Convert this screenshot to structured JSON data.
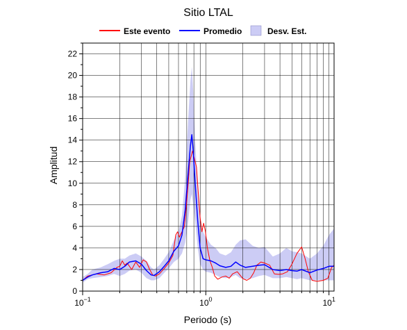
{
  "chart_data": {
    "type": "line",
    "title": "Sitio LTAL",
    "xlabel": "Periodo (s)",
    "ylabel": "Amplitud",
    "xscale": "log",
    "xlim": [
      0.1,
      11
    ],
    "ylim": [
      0,
      23
    ],
    "grid": true,
    "legend_position": "top",
    "x_tick_labels": [
      {
        "value": 0.1,
        "base": "10",
        "exp": "−1"
      },
      {
        "value": 1,
        "base": "10",
        "exp": "0"
      },
      {
        "value": 10,
        "base": "10",
        "exp": "1"
      }
    ],
    "y_ticks": [
      0,
      2,
      4,
      6,
      8,
      10,
      12,
      14,
      16,
      18,
      20,
      22
    ],
    "y_tick_labels": [
      "0",
      "2",
      "4",
      "6",
      "8",
      "10",
      "12",
      "14",
      "16",
      "18",
      "20",
      "22"
    ],
    "legend": {
      "event_label": "Este evento",
      "mean_label": "Promedio",
      "std_label": "Desv. Est."
    },
    "colors": {
      "event": "#ff0000",
      "mean": "#0000ff",
      "std_fill": "#ccccf5",
      "grid": "#000000"
    },
    "mean_series": [
      [
        0.1,
        1.0
      ],
      [
        0.11,
        1.3
      ],
      [
        0.12,
        1.5
      ],
      [
        0.14,
        1.7
      ],
      [
        0.16,
        1.8
      ],
      [
        0.18,
        2.1
      ],
      [
        0.2,
        2.0
      ],
      [
        0.22,
        2.3
      ],
      [
        0.24,
        2.7
      ],
      [
        0.27,
        2.8
      ],
      [
        0.3,
        2.5
      ],
      [
        0.33,
        1.9
      ],
      [
        0.36,
        1.5
      ],
      [
        0.38,
        1.45
      ],
      [
        0.42,
        1.8
      ],
      [
        0.46,
        2.3
      ],
      [
        0.5,
        2.8
      ],
      [
        0.55,
        3.7
      ],
      [
        0.6,
        4.2
      ],
      [
        0.64,
        5.2
      ],
      [
        0.68,
        7.5
      ],
      [
        0.72,
        11.0
      ],
      [
        0.75,
        13.5
      ],
      [
        0.77,
        14.5
      ],
      [
        0.79,
        13.0
      ],
      [
        0.82,
        10.0
      ],
      [
        0.86,
        6.5
      ],
      [
        0.9,
        4.0
      ],
      [
        0.95,
        3.0
      ],
      [
        1.0,
        2.9
      ],
      [
        1.1,
        2.8
      ],
      [
        1.2,
        2.6
      ],
      [
        1.3,
        2.35
      ],
      [
        1.45,
        2.2
      ],
      [
        1.6,
        2.3
      ],
      [
        1.75,
        2.7
      ],
      [
        1.9,
        2.4
      ],
      [
        2.1,
        2.2
      ],
      [
        2.4,
        2.3
      ],
      [
        2.7,
        2.4
      ],
      [
        3.0,
        2.45
      ],
      [
        3.5,
        2.0
      ],
      [
        4.0,
        1.9
      ],
      [
        4.5,
        2.0
      ],
      [
        5.0,
        1.9
      ],
      [
        5.5,
        1.85
      ],
      [
        6.0,
        2.0
      ],
      [
        7.0,
        1.7
      ],
      [
        8.0,
        1.95
      ],
      [
        9.0,
        2.1
      ],
      [
        10.0,
        2.3
      ],
      [
        11.0,
        2.3
      ]
    ],
    "event_series": [
      [
        0.1,
        1.0
      ],
      [
        0.11,
        1.4
      ],
      [
        0.13,
        1.6
      ],
      [
        0.15,
        1.5
      ],
      [
        0.17,
        1.7
      ],
      [
        0.19,
        2.2
      ],
      [
        0.2,
        2.3
      ],
      [
        0.21,
        2.8
      ],
      [
        0.22,
        2.4
      ],
      [
        0.23,
        2.6
      ],
      [
        0.25,
        2.0
      ],
      [
        0.27,
        2.7
      ],
      [
        0.29,
        2.2
      ],
      [
        0.31,
        2.9
      ],
      [
        0.33,
        2.7
      ],
      [
        0.35,
        2.0
      ],
      [
        0.37,
        1.5
      ],
      [
        0.39,
        1.4
      ],
      [
        0.42,
        1.6
      ],
      [
        0.46,
        2.1
      ],
      [
        0.5,
        2.6
      ],
      [
        0.54,
        3.3
      ],
      [
        0.57,
        5.2
      ],
      [
        0.59,
        5.5
      ],
      [
        0.61,
        5.0
      ],
      [
        0.64,
        5.5
      ],
      [
        0.67,
        6.0
      ],
      [
        0.69,
        7.5
      ],
      [
        0.72,
        10.0
      ],
      [
        0.74,
        12.0
      ],
      [
        0.76,
        12.5
      ],
      [
        0.78,
        13.0
      ],
      [
        0.8,
        12.5
      ],
      [
        0.82,
        12.0
      ],
      [
        0.84,
        11.5
      ],
      [
        0.87,
        9.0
      ],
      [
        0.9,
        6.8
      ],
      [
        0.93,
        5.5
      ],
      [
        0.96,
        6.3
      ],
      [
        0.99,
        5.6
      ],
      [
        1.03,
        4.0
      ],
      [
        1.08,
        2.8
      ],
      [
        1.13,
        2.2
      ],
      [
        1.18,
        1.4
      ],
      [
        1.25,
        1.1
      ],
      [
        1.35,
        1.3
      ],
      [
        1.45,
        1.4
      ],
      [
        1.55,
        1.2
      ],
      [
        1.65,
        1.6
      ],
      [
        1.8,
        1.8
      ],
      [
        2.0,
        1.15
      ],
      [
        2.15,
        1.0
      ],
      [
        2.3,
        1.2
      ],
      [
        2.45,
        1.7
      ],
      [
        2.6,
        2.4
      ],
      [
        2.8,
        2.7
      ],
      [
        3.0,
        2.6
      ],
      [
        3.3,
        2.4
      ],
      [
        3.6,
        1.6
      ],
      [
        3.9,
        1.55
      ],
      [
        4.2,
        1.6
      ],
      [
        4.6,
        1.8
      ],
      [
        5.0,
        2.5
      ],
      [
        5.5,
        3.5
      ],
      [
        6.0,
        4.1
      ],
      [
        6.4,
        3.0
      ],
      [
        6.8,
        1.8
      ],
      [
        7.3,
        1.0
      ],
      [
        8.0,
        0.9
      ],
      [
        9.0,
        1.0
      ],
      [
        9.8,
        1.2
      ],
      [
        10.5,
        2.2
      ],
      [
        11.0,
        2.4
      ]
    ],
    "std_upper": [
      [
        0.1,
        1.3
      ],
      [
        0.11,
        1.6
      ],
      [
        0.12,
        2.0
      ],
      [
        0.14,
        2.2
      ],
      [
        0.16,
        2.5
      ],
      [
        0.18,
        2.8
      ],
      [
        0.2,
        3.0
      ],
      [
        0.22,
        3.0
      ],
      [
        0.24,
        3.3
      ],
      [
        0.27,
        3.5
      ],
      [
        0.3,
        3.2
      ],
      [
        0.33,
        2.8
      ],
      [
        0.36,
        2.2
      ],
      [
        0.38,
        2.0
      ],
      [
        0.42,
        2.4
      ],
      [
        0.46,
        3.0
      ],
      [
        0.5,
        3.6
      ],
      [
        0.55,
        4.7
      ],
      [
        0.6,
        5.5
      ],
      [
        0.64,
        7.0
      ],
      [
        0.68,
        10.5
      ],
      [
        0.72,
        16.0
      ],
      [
        0.75,
        19.5
      ],
      [
        0.77,
        20.8
      ],
      [
        0.79,
        18.5
      ],
      [
        0.82,
        14.0
      ],
      [
        0.86,
        9.5
      ],
      [
        0.9,
        6.5
      ],
      [
        0.95,
        5.5
      ],
      [
        1.0,
        5.0
      ],
      [
        1.1,
        4.3
      ],
      [
        1.2,
        4.0
      ],
      [
        1.3,
        3.5
      ],
      [
        1.45,
        3.3
      ],
      [
        1.6,
        3.6
      ],
      [
        1.75,
        4.3
      ],
      [
        1.9,
        4.7
      ],
      [
        2.1,
        4.8
      ],
      [
        2.4,
        4.2
      ],
      [
        2.7,
        4.0
      ],
      [
        3.0,
        4.1
      ],
      [
        3.5,
        3.2
      ],
      [
        4.0,
        3.5
      ],
      [
        4.5,
        4.0
      ],
      [
        5.0,
        3.7
      ],
      [
        5.5,
        3.6
      ],
      [
        6.0,
        3.5
      ],
      [
        7.0,
        3.0
      ],
      [
        8.0,
        3.5
      ],
      [
        9.0,
        4.2
      ],
      [
        10.0,
        5.2
      ],
      [
        11.0,
        5.8
      ]
    ],
    "std_lower": [
      [
        0.1,
        0.8
      ],
      [
        0.11,
        1.1
      ],
      [
        0.12,
        1.2
      ],
      [
        0.14,
        1.3
      ],
      [
        0.16,
        1.4
      ],
      [
        0.18,
        1.6
      ],
      [
        0.2,
        1.4
      ],
      [
        0.22,
        1.6
      ],
      [
        0.24,
        1.9
      ],
      [
        0.27,
        2.0
      ],
      [
        0.3,
        1.7
      ],
      [
        0.33,
        1.2
      ],
      [
        0.36,
        1.0
      ],
      [
        0.38,
        1.0
      ],
      [
        0.42,
        1.2
      ],
      [
        0.46,
        1.7
      ],
      [
        0.5,
        2.1
      ],
      [
        0.55,
        2.7
      ],
      [
        0.6,
        3.0
      ],
      [
        0.64,
        3.5
      ],
      [
        0.68,
        4.5
      ],
      [
        0.72,
        6.5
      ],
      [
        0.75,
        8.5
      ],
      [
        0.77,
        9.0
      ],
      [
        0.79,
        8.0
      ],
      [
        0.82,
        6.5
      ],
      [
        0.86,
        4.0
      ],
      [
        0.9,
        2.5
      ],
      [
        0.95,
        2.0
      ],
      [
        1.0,
        1.8
      ],
      [
        1.1,
        1.7
      ],
      [
        1.2,
        1.5
      ],
      [
        1.3,
        1.3
      ],
      [
        1.45,
        1.2
      ],
      [
        1.6,
        1.3
      ],
      [
        1.75,
        1.5
      ],
      [
        1.9,
        1.2
      ],
      [
        2.1,
        1.1
      ],
      [
        2.4,
        1.2
      ],
      [
        2.7,
        1.4
      ],
      [
        3.0,
        1.5
      ],
      [
        3.5,
        1.2
      ],
      [
        4.0,
        1.2
      ],
      [
        4.5,
        1.3
      ],
      [
        5.0,
        1.2
      ],
      [
        5.5,
        1.1
      ],
      [
        6.0,
        1.2
      ],
      [
        7.0,
        1.0
      ],
      [
        8.0,
        1.0
      ],
      [
        9.0,
        1.0
      ],
      [
        10.0,
        1.0
      ],
      [
        11.0,
        1.0
      ]
    ]
  }
}
